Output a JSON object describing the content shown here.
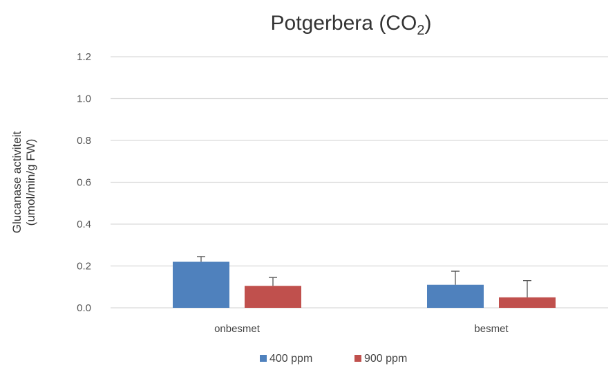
{
  "chart_data": {
    "type": "bar",
    "title_main": "Potgerbera (CO",
    "title_sub": "2",
    "title_close": ")",
    "ylabel_line1": "Glucanase activiteit",
    "ylabel_line2": "(umol/min/g FW)",
    "xlabel": "",
    "categories": [
      "onbesmet",
      "besmet"
    ],
    "ylim": [
      0,
      1.2
    ],
    "yticks": [
      "0.0",
      "0.2",
      "0.4",
      "0.6",
      "0.8",
      "1.0",
      "1.2"
    ],
    "series": [
      {
        "name": "400 ppm",
        "color": "#4f81bd",
        "values": [
          0.22,
          0.11
        ],
        "errors": [
          0.025,
          0.065
        ]
      },
      {
        "name": "900 ppm",
        "color": "#c0504d",
        "values": [
          0.105,
          0.05
        ],
        "errors": [
          0.04,
          0.08
        ]
      }
    ],
    "grid": true,
    "legend_position": "bottom-center"
  }
}
